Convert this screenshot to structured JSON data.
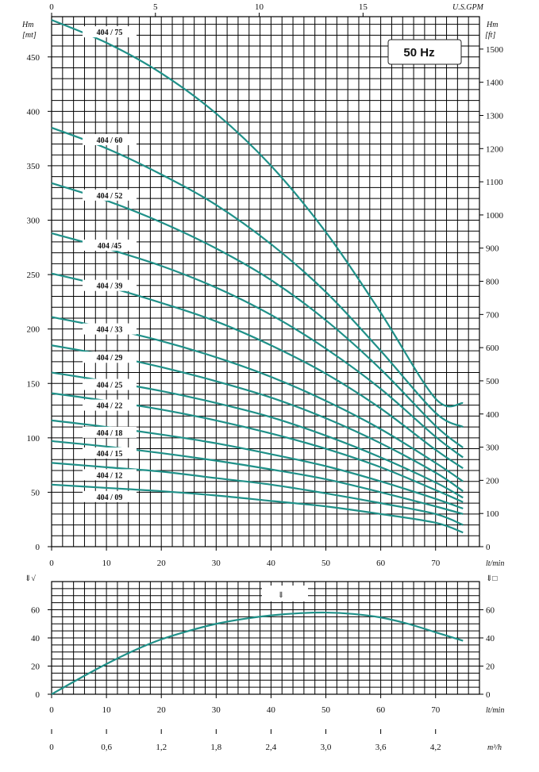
{
  "frequency_badge": "50 Hz",
  "chart_data": [
    {
      "type": "line",
      "title": "",
      "units": {
        "left": [
          "Hm",
          "[mt]"
        ],
        "right": [
          "Hm",
          "[ft]"
        ],
        "top": "U.S.GPM",
        "bottom": "lt/min"
      },
      "xlim": [
        0,
        78
      ],
      "ylim": [
        0,
        487
      ],
      "x_ticks": [
        0,
        10,
        20,
        30,
        40,
        50,
        60,
        70
      ],
      "y_ticks": [
        0,
        50,
        100,
        150,
        200,
        250,
        300,
        350,
        400,
        450
      ],
      "gpm_ticks": [
        0,
        5,
        10,
        15
      ],
      "ft_ticks": [
        0,
        100,
        200,
        300,
        400,
        500,
        600,
        700,
        800,
        900,
        1000,
        1100,
        1200,
        1300,
        1400,
        1500
      ],
      "grid": true,
      "series": [
        {
          "name": "404 / 75",
          "x": [
            0,
            10,
            20,
            30,
            40,
            50,
            60,
            70,
            75
          ],
          "values": [
            484,
            463,
            435,
            398,
            350,
            289,
            215,
            136,
            132
          ]
        },
        {
          "name": "404 / 60",
          "x": [
            0,
            10,
            20,
            30,
            40,
            50,
            60,
            70,
            75
          ],
          "values": [
            385,
            366,
            342,
            314,
            278,
            234,
            180,
            123,
            110
          ]
        },
        {
          "name": "404 / 52",
          "x": [
            0,
            10,
            20,
            30,
            40,
            50,
            60,
            70,
            75
          ],
          "values": [
            334,
            318,
            298,
            274,
            245,
            208,
            163,
            111,
            91
          ]
        },
        {
          "name": "404 /45",
          "x": [
            0,
            10,
            20,
            30,
            40,
            50,
            60,
            70,
            75
          ],
          "values": [
            288,
            274,
            258,
            238,
            213,
            182,
            145,
            101,
            82
          ]
        },
        {
          "name": "404 / 39",
          "x": [
            0,
            10,
            20,
            30,
            40,
            50,
            60,
            70,
            75
          ],
          "values": [
            251,
            239,
            224,
            207,
            185,
            159,
            127,
            89,
            72
          ]
        },
        {
          "name": "404 / 33",
          "x": [
            0,
            10,
            20,
            30,
            40,
            50,
            60,
            70,
            75
          ],
          "values": [
            211,
            201,
            189,
            174,
            156,
            134,
            108,
            77,
            60
          ]
        },
        {
          "name": "404 / 29",
          "x": [
            0,
            10,
            20,
            30,
            40,
            50,
            60,
            70,
            75
          ],
          "values": [
            185,
            176,
            165,
            152,
            137,
            118,
            95,
            68,
            51
          ]
        },
        {
          "name": "404 / 25",
          "x": [
            0,
            10,
            20,
            30,
            40,
            50,
            60,
            70,
            75
          ],
          "values": [
            160,
            152,
            143,
            132,
            119,
            102,
            82,
            59,
            45
          ]
        },
        {
          "name": "404 / 22",
          "x": [
            0,
            10,
            20,
            30,
            40,
            50,
            60,
            70,
            75
          ],
          "values": [
            141,
            134,
            126,
            116,
            104,
            90,
            73,
            52,
            41
          ]
        },
        {
          "name": "404 / 18",
          "x": [
            0,
            10,
            20,
            30,
            40,
            50,
            60,
            70,
            75
          ],
          "values": [
            116,
            110,
            103,
            95,
            85,
            74,
            60,
            44,
            35
          ]
        },
        {
          "name": "404 / 15",
          "x": [
            0,
            10,
            20,
            30,
            40,
            50,
            60,
            70,
            75
          ],
          "values": [
            97,
            92,
            86,
            79,
            71,
            62,
            50,
            37,
            30
          ]
        },
        {
          "name": "404 / 12",
          "x": [
            0,
            10,
            20,
            30,
            40,
            50,
            60,
            70,
            75
          ],
          "values": [
            77,
            73,
            69,
            63,
            57,
            49,
            40,
            30,
            20
          ]
        },
        {
          "name": "404 / 09",
          "x": [
            0,
            10,
            20,
            30,
            40,
            50,
            60,
            70,
            75
          ],
          "values": [
            57,
            54,
            51,
            47,
            42,
            37,
            30,
            22,
            13
          ]
        }
      ]
    },
    {
      "type": "line",
      "title": "",
      "units": {
        "left": "⇓√",
        "right": "⇓□",
        "inner": "⇓",
        "bottom": "lt/min",
        "bottom2": "m³/h"
      },
      "xlim": [
        0,
        78
      ],
      "ylim": [
        0,
        80
      ],
      "x_ticks": [
        0,
        10,
        20,
        30,
        40,
        50,
        60,
        70
      ],
      "y_ticks": [
        0,
        20,
        40,
        60
      ],
      "m3h_ticks": [
        "0",
        "0,6",
        "1,2",
        "1,8",
        "2,4",
        "3,0",
        "3,6",
        "4,2"
      ],
      "grid": true,
      "series": [
        {
          "x": [
            0,
            5,
            10,
            15,
            20,
            25,
            30,
            35,
            40,
            45,
            50,
            55,
            60,
            65,
            70,
            75
          ],
          "values": [
            0,
            11,
            21.5,
            31,
            39,
            45,
            50,
            53.5,
            56,
            57.5,
            58,
            57,
            54.5,
            50,
            44,
            38
          ]
        }
      ]
    }
  ]
}
